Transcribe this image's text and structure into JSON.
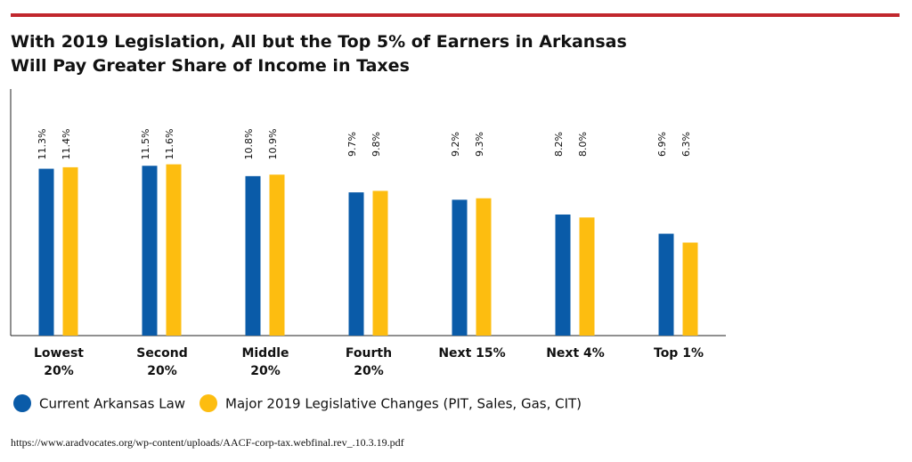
{
  "chart_data": {
    "type": "bar",
    "title_lines": [
      "With 2019 Legislation, All but the Top 5% of Earners in Arkansas",
      "Will Pay Greater Share of Income in Taxes"
    ],
    "categories": [
      [
        "Lowest",
        "20%"
      ],
      [
        "Second",
        "20%"
      ],
      [
        "Middle",
        "20%"
      ],
      [
        "Fourth",
        "20%"
      ],
      [
        "Next 15%"
      ],
      [
        "Next 4%"
      ],
      [
        "Top 1%"
      ]
    ],
    "series": [
      {
        "name": "Current Arkansas Law",
        "color": "#0a5ba8",
        "values": [
          11.3,
          11.5,
          10.8,
          9.7,
          9.2,
          8.2,
          6.9
        ],
        "value_labels": [
          "11.3%",
          "11.5%",
          "10.8%",
          "9.7%",
          "9.2%",
          "8.2%",
          "6.9%"
        ]
      },
      {
        "name": "Major 2019 Legislative Changes (PIT, Sales, Gas, CIT)",
        "color": "#fdbd10",
        "values": [
          11.4,
          11.6,
          10.9,
          9.8,
          9.3,
          8.0,
          6.3
        ],
        "value_labels": [
          "11.4%",
          "11.6%",
          "10.9%",
          "9.8%",
          "9.3%",
          "8.0%",
          "6.3%"
        ]
      }
    ],
    "ylim": [
      0,
      16.7
    ],
    "source": "https://www.aradvocates.org/wp-content/uploads/AACF-corp-tax.webfinal.rev_.10.3.19.pdf"
  }
}
